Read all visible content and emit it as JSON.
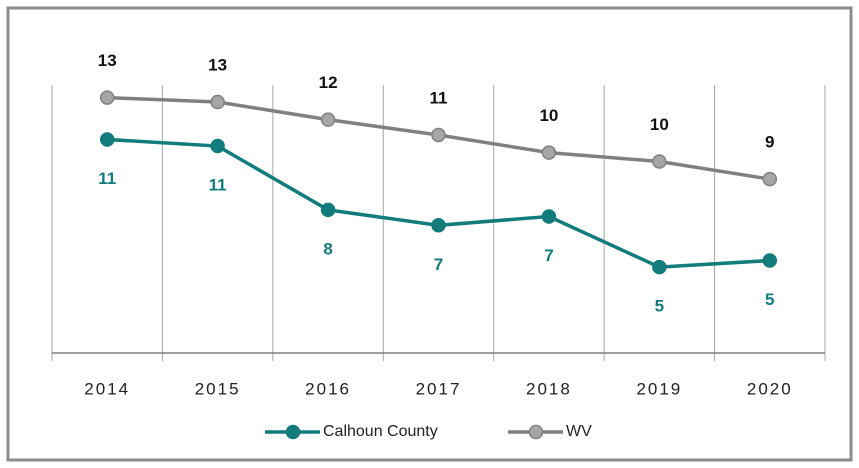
{
  "chart_data": {
    "type": "line",
    "categories": [
      "2014",
      "2015",
      "2016",
      "2017",
      "2018",
      "2019",
      "2020"
    ],
    "series": [
      {
        "name": "Calhoun County",
        "color": "#127b7b",
        "marker_fill": "#127b7b",
        "values": [
          10.9,
          10.6,
          7.7,
          7.0,
          7.4,
          5.1,
          5.4
        ],
        "value_labels": [
          "11",
          "11",
          "8",
          "7",
          "7",
          "5",
          "5"
        ]
      },
      {
        "name": "WV",
        "color": "#808080",
        "marker_fill": "#a6a6a6",
        "values": [
          12.8,
          12.6,
          11.8,
          11.1,
          10.3,
          9.9,
          9.1
        ],
        "value_labels": [
          "13",
          "13",
          "12",
          "11",
          "10",
          "10",
          "9"
        ]
      }
    ],
    "ylim": [
      1.2,
      13.6
    ]
  }
}
